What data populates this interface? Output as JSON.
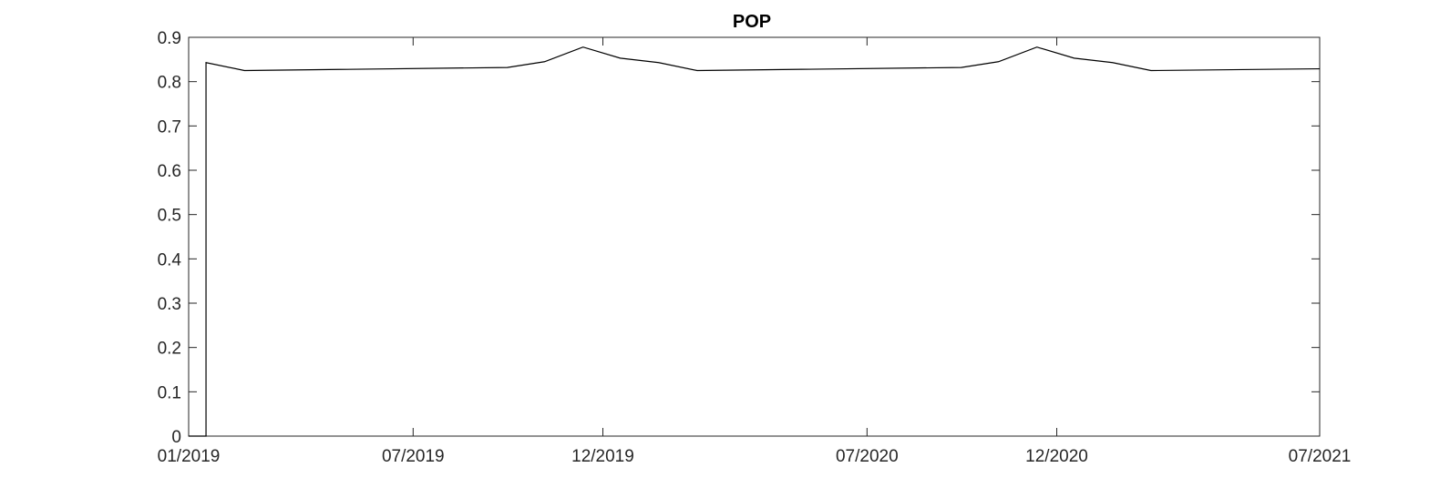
{
  "chart_data": {
    "type": "line",
    "title": "POP",
    "xlabel": "",
    "ylabel": "",
    "x_ticks": [
      "01/2019",
      "07/2019",
      "12/2019",
      "07/2020",
      "12/2020",
      "07/2021"
    ],
    "x_tick_dates": [
      "2019-01-01",
      "2019-07-01",
      "2019-12-01",
      "2020-07-01",
      "2020-12-01",
      "2021-07-01"
    ],
    "xlim": [
      "2019-01-01",
      "2021-07-01"
    ],
    "y_ticks": [
      "0",
      "0.1",
      "0.2",
      "0.3",
      "0.4",
      "0.5",
      "0.6",
      "0.7",
      "0.8",
      "0.9"
    ],
    "ylim": [
      0,
      0.9
    ],
    "grid": false,
    "box": true,
    "series": [
      {
        "color": "#000000",
        "points": [
          {
            "x": "2019-01-01",
            "y": 0
          },
          {
            "x": "2019-01-15",
            "y": 0
          },
          {
            "x": "2019-01-15",
            "y": 0.843
          },
          {
            "x": "2019-02-15",
            "y": 0.825
          },
          {
            "x": "2019-09-15",
            "y": 0.832
          },
          {
            "x": "2019-10-15",
            "y": 0.845
          },
          {
            "x": "2019-11-15",
            "y": 0.878
          },
          {
            "x": "2019-12-15",
            "y": 0.853
          },
          {
            "x": "2020-01-15",
            "y": 0.843
          },
          {
            "x": "2020-02-15",
            "y": 0.825
          },
          {
            "x": "2020-09-15",
            "y": 0.832
          },
          {
            "x": "2020-10-15",
            "y": 0.845
          },
          {
            "x": "2020-11-15",
            "y": 0.878
          },
          {
            "x": "2020-12-15",
            "y": 0.853
          },
          {
            "x": "2021-01-15",
            "y": 0.843
          },
          {
            "x": "2021-02-15",
            "y": 0.825
          },
          {
            "x": "2021-07-01",
            "y": 0.829
          }
        ]
      }
    ]
  }
}
